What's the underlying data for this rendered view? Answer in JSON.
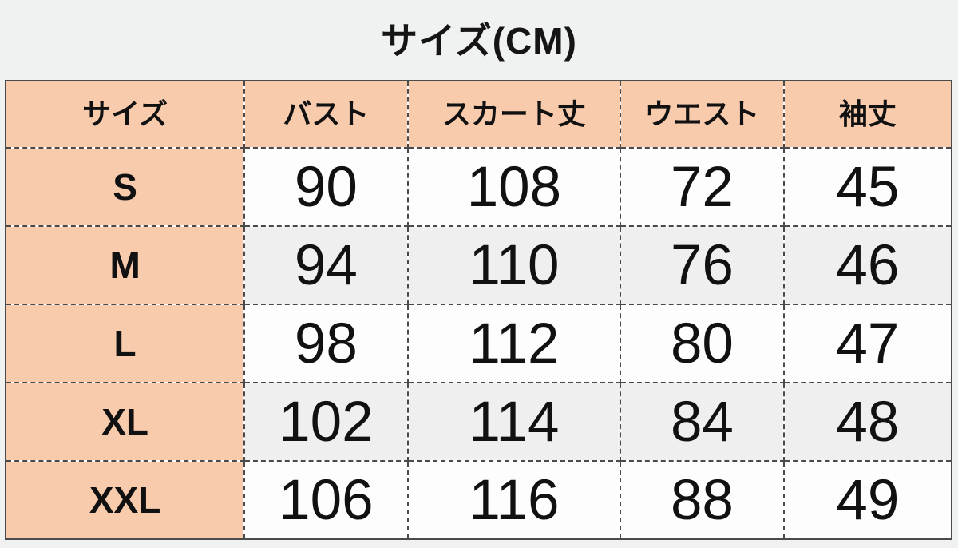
{
  "page": {
    "title": "サイズ(CM)"
  },
  "chart_data": {
    "type": "table",
    "title": "サイズ(CM)",
    "columns": [
      "サイズ",
      "バスト",
      "スカート丈",
      "ウエスト",
      "袖丈"
    ],
    "rows": [
      {
        "size": "S",
        "cells": [
          "90",
          "108",
          "72",
          "45"
        ]
      },
      {
        "size": "M",
        "cells": [
          "94",
          "110",
          "76",
          "46"
        ]
      },
      {
        "size": "L",
        "cells": [
          "98",
          "112",
          "80",
          "47"
        ]
      },
      {
        "size": "XL",
        "cells": [
          "102",
          "114",
          "84",
          "48"
        ]
      },
      {
        "size": "XXL",
        "cells": [
          "106",
          "116",
          "88",
          "49"
        ]
      }
    ]
  },
  "colors": {
    "page_bg": "#f0f2f1",
    "header_bg": "#f8cbad",
    "size_col_bg": "#f8cbad",
    "row_bg": "#fdfdfd",
    "row_alt_bg": "#efefef",
    "border": "#4b4b4b",
    "grid": "#4a4a4a",
    "text": "#111111"
  }
}
